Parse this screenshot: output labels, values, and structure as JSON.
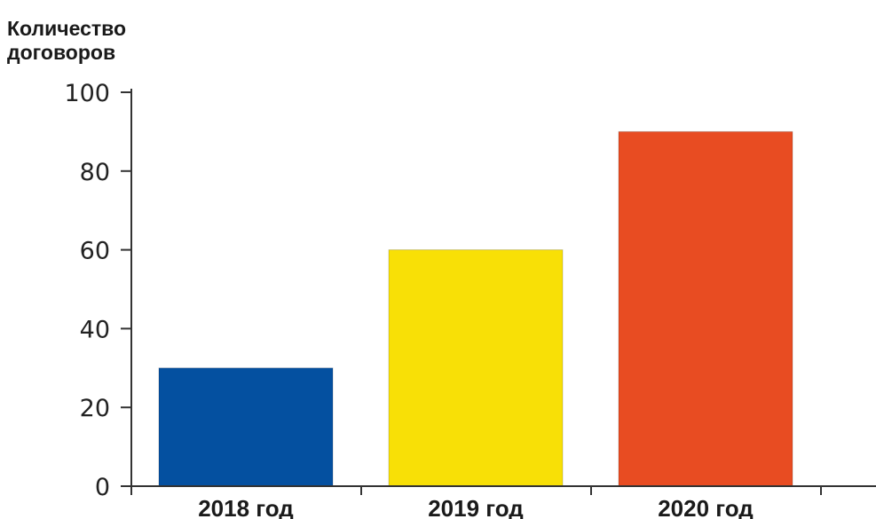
{
  "chart_data": {
    "type": "bar",
    "title": "",
    "ylabel_lines": [
      "Количество",
      "договоров"
    ],
    "xlabel": "",
    "categories": [
      "2018 год",
      "2019 год",
      "2020 год"
    ],
    "values": [
      30,
      60,
      90
    ],
    "colors": [
      "#0450a0",
      "#f8e006",
      "#e84c22"
    ],
    "ylim": [
      0,
      100
    ],
    "yticks": [
      0,
      20,
      40,
      60,
      80,
      100
    ],
    "grid": false,
    "legend": "none"
  }
}
